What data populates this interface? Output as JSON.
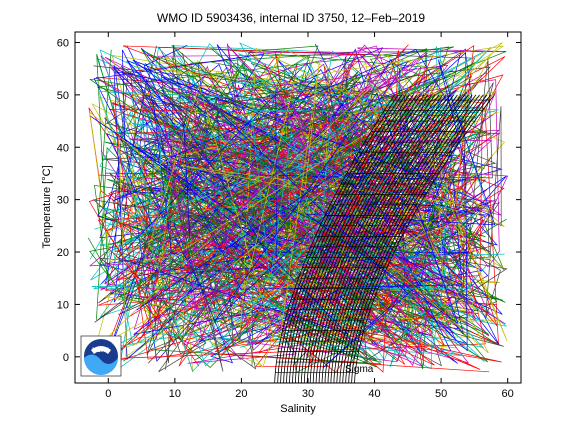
{
  "chart_data": {
    "type": "line",
    "title": "WMO ID 5903436, internal ID 3750, 12–Feb–2019",
    "xlabel": "Salinity",
    "ylabel": "Temperature [°C]",
    "xlim": [
      -5,
      62
    ],
    "ylim": [
      -5,
      62
    ],
    "xticks": [
      0,
      10,
      20,
      30,
      40,
      50,
      60
    ],
    "yticks": [
      0,
      10,
      20,
      30,
      40,
      50,
      60
    ],
    "xtick_labels": [
      "0",
      "10",
      "20",
      "30",
      "40",
      "50",
      "60"
    ],
    "ytick_labels": [
      "0",
      "10",
      "20",
      "30",
      "40",
      "50",
      "60"
    ],
    "grid": false,
    "series_colors": [
      "#0000ff",
      "#008000",
      "#ff0000",
      "#00bfbf",
      "#bf00bf",
      "#bfbf00",
      "#404040"
    ],
    "isopycnal_grid": {
      "color": "#000000",
      "salinity_range": [
        25,
        37
      ],
      "temperature_range": [
        -5,
        50
      ],
      "curves": 28,
      "warm_salinity_range": [
        43,
        58
      ]
    },
    "isopycnal_label": "Sigma"
  },
  "logo": {
    "name": "noaa-logo",
    "text": "NOAA"
  }
}
